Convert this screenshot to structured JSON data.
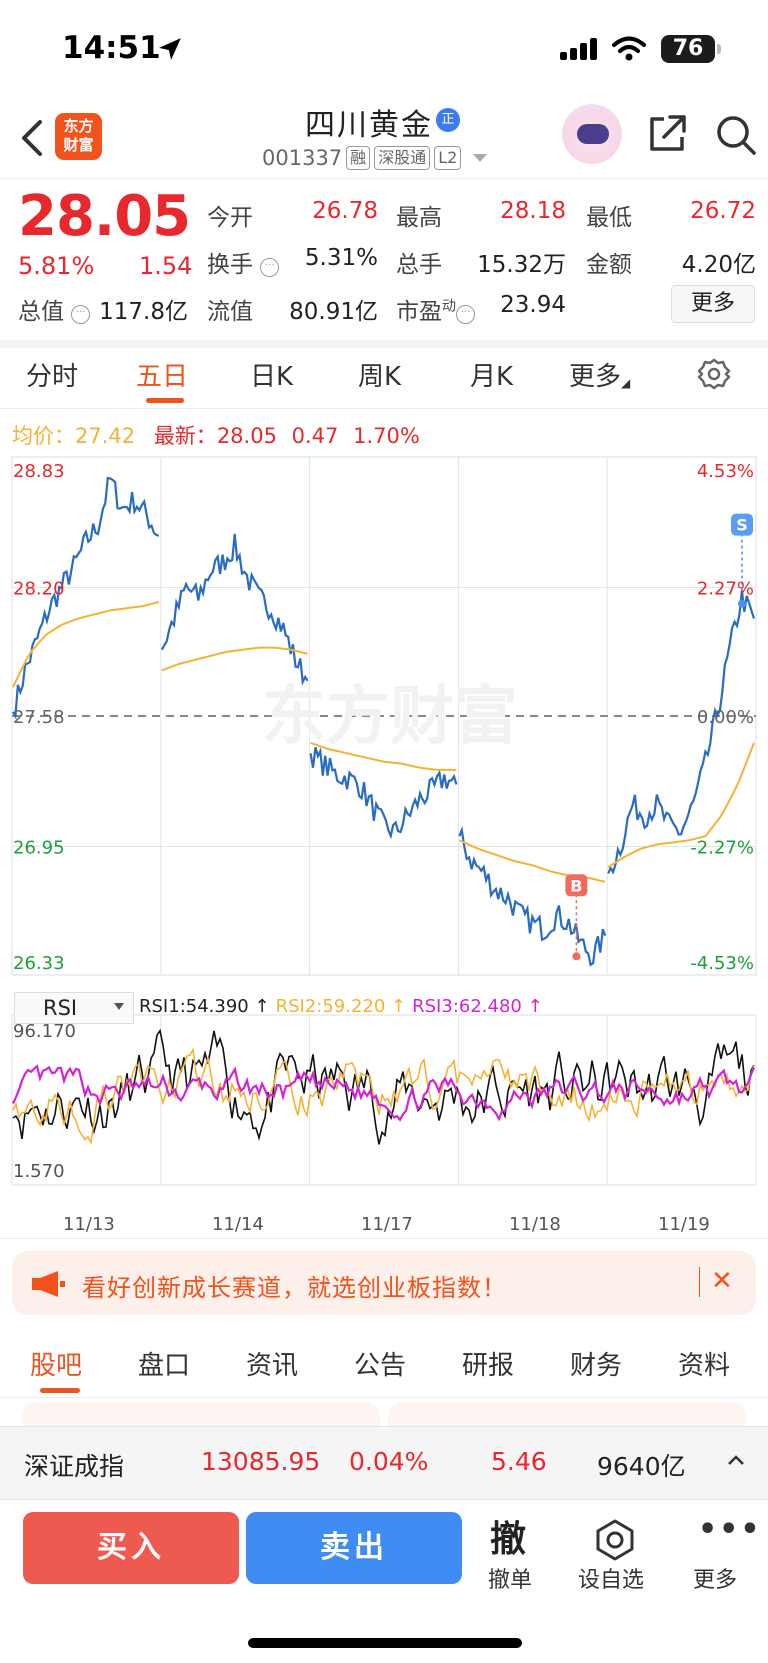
{
  "status_bar": {
    "time": "14:51",
    "battery": "76"
  },
  "header": {
    "logo_line1": "东方",
    "logo_line2": "财富",
    "stock_name": "四川黄金",
    "badge": "正",
    "code": "001337",
    "tags": [
      "融",
      "深股通",
      "L2"
    ]
  },
  "quote": {
    "price": "28.05",
    "change_pct": "5.81%",
    "change": "1.54",
    "rows": [
      [
        {
          "label": "今开",
          "value": "26.78",
          "color": "red"
        },
        {
          "label": "最高",
          "value": "28.18",
          "color": "red"
        },
        {
          "label": "最低",
          "value": "26.72",
          "color": "red"
        }
      ],
      [
        {
          "label": "换手",
          "value": "5.31%",
          "color": "black"
        },
        {
          "label": "总手",
          "value": "15.32万",
          "color": "black"
        },
        {
          "label": "金额",
          "value": "4.20亿",
          "color": "black"
        }
      ],
      [
        {
          "label": "总值",
          "value": "117.8亿",
          "color": "black"
        },
        {
          "label": "流值",
          "value": "80.91亿",
          "color": "black"
        },
        {
          "label": "市盈",
          "value": "23.94",
          "color": "black"
        }
      ]
    ],
    "pe_sup": "动",
    "more_label": "更多"
  },
  "period_tabs": [
    "分时",
    "五日",
    "日K",
    "周K",
    "月K",
    "更多"
  ],
  "active_period": "五日",
  "legend": {
    "avg_label": "均价：",
    "avg_value": "27.42",
    "latest_label": "最新：",
    "latest_value": "28.05",
    "latest_change": "0.47",
    "latest_pct": "1.70%"
  },
  "chart_data": {
    "type": "line",
    "title": "",
    "ylim": [
      26.33,
      28.83
    ],
    "prev_close": 27.58,
    "y_ticks_left": [
      "28.83",
      "28.20",
      "27.58",
      "26.95",
      "26.33"
    ],
    "y_ticks_right": [
      "4.53%",
      "2.27%",
      "0.00%",
      "-2.27%",
      "-4.53%"
    ],
    "days": [
      "11/13",
      "11/14",
      "11/17",
      "11/18",
      "11/19"
    ],
    "watermark": "东方财富",
    "series": [
      {
        "color": "#2a6cc4",
        "values_by_day": [
          [
            27.6,
            27.8,
            27.95,
            28.1,
            28.2,
            28.3,
            28.42,
            28.5,
            28.72,
            28.58,
            28.62,
            28.55,
            28.45
          ],
          [
            27.9,
            28.05,
            28.2,
            28.15,
            28.28,
            28.32,
            28.4,
            28.25,
            28.15,
            28.1,
            28.0,
            27.85,
            27.75
          ],
          [
            27.4,
            27.35,
            27.3,
            27.28,
            27.25,
            27.15,
            27.05,
            27.02,
            27.1,
            27.18,
            27.22,
            27.28,
            27.25
          ],
          [
            27.0,
            26.88,
            26.82,
            26.74,
            26.7,
            26.62,
            26.58,
            26.55,
            26.62,
            26.58,
            26.48,
            26.42,
            26.52
          ],
          [
            26.82,
            26.95,
            27.15,
            27.1,
            27.15,
            27.05,
            27.02,
            27.15,
            27.35,
            27.6,
            27.9,
            28.15,
            28.05
          ]
        ]
      },
      {
        "color": "#f5b335",
        "values_by_day": [
          [
            27.72,
            27.88,
            27.97,
            28.02,
            28.05,
            28.07,
            28.09,
            28.1,
            28.11,
            28.13
          ],
          [
            27.8,
            27.83,
            27.85,
            27.87,
            27.89,
            27.9,
            27.91,
            27.91,
            27.9,
            27.88
          ],
          [
            27.45,
            27.42,
            27.4,
            27.38,
            27.36,
            27.35,
            27.33,
            27.32,
            27.32
          ],
          [
            26.98,
            26.94,
            26.91,
            26.88,
            26.86,
            26.83,
            26.81,
            26.8,
            26.78
          ],
          [
            26.85,
            26.9,
            26.94,
            26.96,
            26.97,
            26.98,
            27.0,
            27.1,
            27.25,
            27.45
          ]
        ]
      }
    ],
    "markers": [
      {
        "label": "B",
        "day": "11/18",
        "price": 26.43
      },
      {
        "label": "S",
        "day": "11/19",
        "price": 28.18
      }
    ]
  },
  "rsi": {
    "selector": "RSI",
    "rsi1": "RSI1:54.390",
    "rsi2": "RSI2:59.220",
    "rsi3": "RSI3:62.480",
    "max": "96.170",
    "min": "1.570"
  },
  "banner": {
    "text": "看好创新成长赛道，就选创业板指数！"
  },
  "bottom_tabs": [
    "股吧",
    "盘口",
    "资讯",
    "公告",
    "研报",
    "财务",
    "资料"
  ],
  "active_bottom_tab": "股吧",
  "index_bar": {
    "name": "深证成指",
    "value": "13085.95",
    "pct": "0.04%",
    "change": "5.46",
    "amount": "9640亿"
  },
  "actions": {
    "buy": "买入",
    "sell": "卖出",
    "cancel_glyph": "撤",
    "cancel": "撤单",
    "watch": "设自选",
    "more": "更多"
  }
}
